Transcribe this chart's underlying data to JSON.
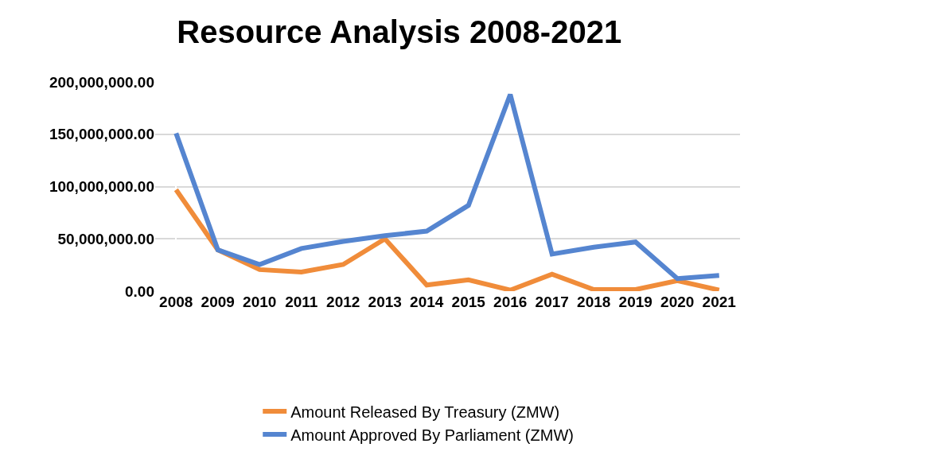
{
  "chart_data": {
    "type": "line",
    "title": "Resource Analysis 2008-2021",
    "categories": [
      "2008",
      "2009",
      "2010",
      "2011",
      "2012",
      "2013",
      "2014",
      "2015",
      "2016",
      "2017",
      "2018",
      "2019",
      "2020",
      "2021"
    ],
    "series": [
      {
        "name": "Amount Released By Treasury (ZMW)",
        "color": "#f08c3a",
        "values": [
          97000000,
          39500000,
          20600000,
          18200000,
          25500000,
          50000000,
          5900000,
          10800000,
          1000000,
          16200000,
          1500000,
          1500000,
          10000000,
          1000000
        ]
      },
      {
        "name": "Amount Approved By Parliament (ZMW)",
        "color": "#5585d0",
        "values": [
          151000000,
          39500000,
          25500000,
          40800000,
          47500000,
          53000000,
          57400000,
          82000000,
          188000000,
          35400000,
          42000000,
          47000000,
          12000000,
          15000000
        ]
      }
    ],
    "ylim": [
      0,
      200000000
    ],
    "yticks": [
      {
        "value": 0,
        "label": "0.00"
      },
      {
        "value": 50000000,
        "label": "50,000,000.00"
      },
      {
        "value": 100000000,
        "label": "100,000,000.00"
      },
      {
        "value": 150000000,
        "label": "150,000,000.00"
      },
      {
        "value": 200000000,
        "label": "200,000,000.00"
      }
    ],
    "grid": "y",
    "legend": "bottom",
    "marker": "none",
    "line_style": "solid"
  }
}
